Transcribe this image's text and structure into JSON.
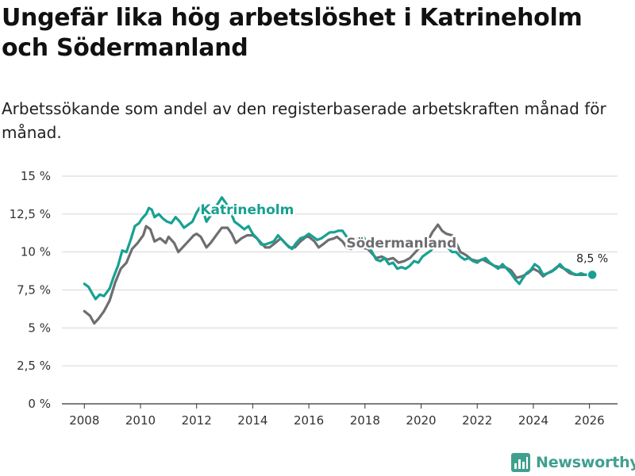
{
  "title": "Ungefär lika hög arbetslöshet i Katrineholm och Södermanland",
  "subtitle": "Arbetssökande som andel av den registerbaserade arbetskraften månad för månad.",
  "brand": "Newsworthy",
  "colors": {
    "katrineholm": "#17a192",
    "sodermanland": "#6e6e72",
    "grid": "#d6d6d6",
    "axis": "#333333",
    "brand": "#3fa08e"
  },
  "chart_data": {
    "type": "line",
    "title": "Ungefär lika hög arbetslöshet i Katrineholm och Södermanland",
    "xlabel": "",
    "ylabel": "",
    "xlim": [
      2007.2,
      2027.0
    ],
    "ylim": [
      0,
      15
    ],
    "grid": true,
    "y_ticks": [
      {
        "value": 0,
        "label": "0 %"
      },
      {
        "value": 2.5,
        "label": "2,5 %"
      },
      {
        "value": 5,
        "label": "5 %"
      },
      {
        "value": 7.5,
        "label": "7,5 %"
      },
      {
        "value": 10,
        "label": "10 %"
      },
      {
        "value": 12.5,
        "label": "12,5 %"
      },
      {
        "value": 15,
        "label": "15 %"
      }
    ],
    "x_ticks": [
      {
        "value": 2008,
        "label": "2008"
      },
      {
        "value": 2010,
        "label": "2010"
      },
      {
        "value": 2012,
        "label": "2012"
      },
      {
        "value": 2014,
        "label": "2014"
      },
      {
        "value": 2016,
        "label": "2016"
      },
      {
        "value": 2018,
        "label": "2018"
      },
      {
        "value": 2020,
        "label": "2020"
      },
      {
        "value": 2022,
        "label": "2022"
      },
      {
        "value": 2024,
        "label": "2024"
      },
      {
        "value": 2026,
        "label": "2026"
      }
    ],
    "series": [
      {
        "name": "Södermanland",
        "color": "#6e6e72",
        "label_at": [
          2019.3,
          10.3
        ],
        "points": [
          [
            2008.0,
            6.1
          ],
          [
            2008.2,
            5.8
          ],
          [
            2008.35,
            5.3
          ],
          [
            2008.5,
            5.6
          ],
          [
            2008.7,
            6.1
          ],
          [
            2008.9,
            6.8
          ],
          [
            2009.1,
            8.0
          ],
          [
            2009.3,
            8.9
          ],
          [
            2009.5,
            9.3
          ],
          [
            2009.7,
            10.2
          ],
          [
            2009.9,
            10.6
          ],
          [
            2010.1,
            11.1
          ],
          [
            2010.2,
            11.7
          ],
          [
            2010.35,
            11.5
          ],
          [
            2010.5,
            10.7
          ],
          [
            2010.7,
            10.9
          ],
          [
            2010.9,
            10.6
          ],
          [
            2011.0,
            11.0
          ],
          [
            2011.2,
            10.6
          ],
          [
            2011.35,
            10.0
          ],
          [
            2011.5,
            10.3
          ],
          [
            2011.7,
            10.7
          ],
          [
            2011.9,
            11.1
          ],
          [
            2012.0,
            11.2
          ],
          [
            2012.15,
            11.0
          ],
          [
            2012.35,
            10.3
          ],
          [
            2012.5,
            10.6
          ],
          [
            2012.7,
            11.1
          ],
          [
            2012.9,
            11.6
          ],
          [
            2013.1,
            11.6
          ],
          [
            2013.25,
            11.2
          ],
          [
            2013.4,
            10.6
          ],
          [
            2013.6,
            10.9
          ],
          [
            2013.8,
            11.1
          ],
          [
            2014.0,
            11.1
          ],
          [
            2014.15,
            10.9
          ],
          [
            2014.3,
            10.6
          ],
          [
            2014.45,
            10.3
          ],
          [
            2014.6,
            10.3
          ],
          [
            2014.8,
            10.6
          ],
          [
            2015.0,
            10.9
          ],
          [
            2015.15,
            10.6
          ],
          [
            2015.3,
            10.3
          ],
          [
            2015.5,
            10.3
          ],
          [
            2015.7,
            10.7
          ],
          [
            2015.9,
            11.0
          ],
          [
            2016.0,
            11.0
          ],
          [
            2016.2,
            10.7
          ],
          [
            2016.35,
            10.3
          ],
          [
            2016.5,
            10.5
          ],
          [
            2016.7,
            10.8
          ],
          [
            2016.9,
            10.9
          ],
          [
            2017.0,
            11.0
          ],
          [
            2017.2,
            10.7
          ],
          [
            2017.35,
            10.3
          ],
          [
            2017.5,
            10.2
          ],
          [
            2017.7,
            10.4
          ],
          [
            2017.9,
            10.3
          ],
          [
            2018.1,
            10.2
          ],
          [
            2018.25,
            9.9
          ],
          [
            2018.4,
            9.6
          ],
          [
            2018.6,
            9.7
          ],
          [
            2018.8,
            9.5
          ],
          [
            2019.0,
            9.6
          ],
          [
            2019.2,
            9.3
          ],
          [
            2019.4,
            9.4
          ],
          [
            2019.6,
            9.6
          ],
          [
            2019.8,
            10.0
          ],
          [
            2020.0,
            10.4
          ],
          [
            2020.2,
            10.6
          ],
          [
            2020.4,
            11.3
          ],
          [
            2020.6,
            11.8
          ],
          [
            2020.75,
            11.4
          ],
          [
            2020.9,
            11.2
          ],
          [
            2021.1,
            11.1
          ],
          [
            2021.25,
            10.6
          ],
          [
            2021.4,
            10.0
          ],
          [
            2021.6,
            9.8
          ],
          [
            2021.8,
            9.5
          ],
          [
            2022.0,
            9.4
          ],
          [
            2022.2,
            9.5
          ],
          [
            2022.4,
            9.3
          ],
          [
            2022.6,
            9.1
          ],
          [
            2022.8,
            9.0
          ],
          [
            2023.0,
            9.0
          ],
          [
            2023.2,
            8.8
          ],
          [
            2023.4,
            8.3
          ],
          [
            2023.6,
            8.4
          ],
          [
            2023.8,
            8.6
          ],
          [
            2024.0,
            8.9
          ],
          [
            2024.2,
            8.7
          ],
          [
            2024.35,
            8.4
          ],
          [
            2024.5,
            8.6
          ],
          [
            2024.7,
            8.8
          ],
          [
            2024.9,
            9.1
          ],
          [
            2025.1,
            8.9
          ],
          [
            2025.3,
            8.6
          ],
          [
            2025.5,
            8.5
          ],
          [
            2025.7,
            8.5
          ],
          [
            2025.9,
            8.5
          ]
        ]
      },
      {
        "name": "Katrineholm",
        "color": "#17a192",
        "label_at": [
          2013.8,
          12.5
        ],
        "end_label": "8,5 %",
        "points": [
          [
            2008.0,
            7.9
          ],
          [
            2008.15,
            7.7
          ],
          [
            2008.3,
            7.2
          ],
          [
            2008.4,
            6.9
          ],
          [
            2008.55,
            7.2
          ],
          [
            2008.7,
            7.1
          ],
          [
            2008.9,
            7.6
          ],
          [
            2009.05,
            8.4
          ],
          [
            2009.2,
            9.1
          ],
          [
            2009.35,
            10.1
          ],
          [
            2009.5,
            10.0
          ],
          [
            2009.65,
            10.8
          ],
          [
            2009.8,
            11.7
          ],
          [
            2009.95,
            11.9
          ],
          [
            2010.05,
            12.2
          ],
          [
            2010.2,
            12.5
          ],
          [
            2010.3,
            12.9
          ],
          [
            2010.4,
            12.8
          ],
          [
            2010.5,
            12.3
          ],
          [
            2010.65,
            12.5
          ],
          [
            2010.8,
            12.2
          ],
          [
            2010.95,
            12.0
          ],
          [
            2011.1,
            11.9
          ],
          [
            2011.25,
            12.3
          ],
          [
            2011.4,
            12.0
          ],
          [
            2011.55,
            11.6
          ],
          [
            2011.7,
            11.8
          ],
          [
            2011.85,
            12.0
          ],
          [
            2012.0,
            12.6
          ],
          [
            2012.1,
            12.9
          ],
          [
            2012.25,
            12.6
          ],
          [
            2012.35,
            12.0
          ],
          [
            2012.5,
            12.4
          ],
          [
            2012.65,
            12.9
          ],
          [
            2012.8,
            13.3
          ],
          [
            2012.9,
            13.6
          ],
          [
            2013.05,
            13.2
          ],
          [
            2013.2,
            12.7
          ],
          [
            2013.35,
            12.0
          ],
          [
            2013.5,
            11.8
          ],
          [
            2013.7,
            11.5
          ],
          [
            2013.85,
            11.7
          ],
          [
            2014.0,
            11.2
          ],
          [
            2014.15,
            10.9
          ],
          [
            2014.3,
            10.5
          ],
          [
            2014.45,
            10.5
          ],
          [
            2014.6,
            10.6
          ],
          [
            2014.75,
            10.7
          ],
          [
            2014.9,
            11.1
          ],
          [
            2015.05,
            10.8
          ],
          [
            2015.2,
            10.5
          ],
          [
            2015.4,
            10.2
          ],
          [
            2015.55,
            10.6
          ],
          [
            2015.7,
            10.9
          ],
          [
            2015.85,
            11.0
          ],
          [
            2016.0,
            11.2
          ],
          [
            2016.15,
            11.0
          ],
          [
            2016.3,
            10.8
          ],
          [
            2016.45,
            10.9
          ],
          [
            2016.6,
            11.1
          ],
          [
            2016.75,
            11.3
          ],
          [
            2016.9,
            11.3
          ],
          [
            2017.05,
            11.4
          ],
          [
            2017.2,
            11.4
          ],
          [
            2017.35,
            11.0
          ],
          [
            2017.5,
            10.8
          ],
          [
            2017.65,
            10.8
          ],
          [
            2017.8,
            11.0
          ],
          [
            2017.95,
            11.0
          ],
          [
            2018.1,
            10.5
          ],
          [
            2018.25,
            10.0
          ],
          [
            2018.4,
            9.5
          ],
          [
            2018.55,
            9.4
          ],
          [
            2018.7,
            9.6
          ],
          [
            2018.85,
            9.2
          ],
          [
            2019.0,
            9.3
          ],
          [
            2019.15,
            8.9
          ],
          [
            2019.3,
            9.0
          ],
          [
            2019.45,
            8.9
          ],
          [
            2019.6,
            9.1
          ],
          [
            2019.75,
            9.4
          ],
          [
            2019.9,
            9.3
          ],
          [
            2020.05,
            9.7
          ],
          [
            2020.2,
            9.9
          ],
          [
            2020.35,
            10.1
          ],
          [
            2020.5,
            10.5
          ],
          [
            2020.65,
            10.8
          ],
          [
            2020.8,
            10.6
          ],
          [
            2020.95,
            10.3
          ],
          [
            2021.1,
            10.0
          ],
          [
            2021.25,
            10.0
          ],
          [
            2021.4,
            9.7
          ],
          [
            2021.55,
            9.5
          ],
          [
            2021.7,
            9.6
          ],
          [
            2021.85,
            9.4
          ],
          [
            2022.0,
            9.3
          ],
          [
            2022.15,
            9.5
          ],
          [
            2022.3,
            9.6
          ],
          [
            2022.45,
            9.3
          ],
          [
            2022.6,
            9.1
          ],
          [
            2022.75,
            8.9
          ],
          [
            2022.9,
            9.2
          ],
          [
            2023.05,
            8.9
          ],
          [
            2023.2,
            8.6
          ],
          [
            2023.35,
            8.2
          ],
          [
            2023.5,
            7.9
          ],
          [
            2023.6,
            8.2
          ],
          [
            2023.75,
            8.6
          ],
          [
            2023.9,
            8.8
          ],
          [
            2024.05,
            9.2
          ],
          [
            2024.2,
            9.0
          ],
          [
            2024.35,
            8.5
          ],
          [
            2024.5,
            8.6
          ],
          [
            2024.65,
            8.7
          ],
          [
            2024.8,
            8.9
          ],
          [
            2024.95,
            9.2
          ],
          [
            2025.1,
            8.9
          ],
          [
            2025.25,
            8.8
          ],
          [
            2025.4,
            8.6
          ],
          [
            2025.55,
            8.5
          ],
          [
            2025.7,
            8.6
          ],
          [
            2025.85,
            8.5
          ],
          [
            2026.0,
            8.5
          ],
          [
            2026.1,
            8.5
          ]
        ]
      }
    ]
  }
}
